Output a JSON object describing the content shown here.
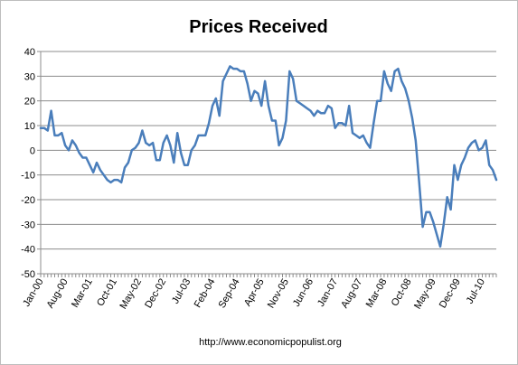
{
  "chart_data": {
    "type": "line",
    "title": "Prices Received",
    "xlabel": "",
    "ylabel": "",
    "ylim": [
      -50,
      40
    ],
    "yticks": [
      "40",
      "30",
      "20",
      "10",
      "0",
      "-10",
      "-20",
      "-30",
      "-40",
      "-50"
    ],
    "ytick_values": [
      40,
      30,
      20,
      10,
      0,
      -10,
      -20,
      -30,
      -40,
      -50
    ],
    "grid": true,
    "legend": "none",
    "line_color": "#4a7ebb",
    "start_date": "2000-01",
    "xtick_labels": [
      "Jan-00",
      "Aug-00",
      "Mar-01",
      "Oct-01",
      "May-02",
      "Dec-02",
      "Jul-03",
      "Feb-04",
      "Sep-04",
      "Apr-05",
      "Nov-05",
      "Jun-06",
      "Jan-07",
      "Aug-07",
      "Mar-08",
      "Oct-08",
      "May-09",
      "Dec-09",
      "Jul-10"
    ],
    "series": [
      {
        "values": [
          9,
          9,
          8,
          16,
          6,
          6,
          7,
          2,
          0,
          4,
          2,
          -1,
          -3,
          -3,
          -6,
          -9,
          -5,
          -8,
          -10,
          -12,
          -13,
          -12,
          -12,
          -13,
          -7,
          -5,
          0,
          1,
          3,
          8,
          3,
          2,
          3,
          -4,
          -4,
          3,
          6,
          2,
          -5,
          7,
          -1,
          -6,
          -6,
          0,
          2,
          6,
          6,
          6,
          11,
          18,
          21,
          14,
          28,
          31,
          34,
          33,
          33,
          32,
          32,
          27,
          20,
          24,
          23,
          18,
          28,
          18,
          12,
          12,
          2,
          5,
          12,
          32,
          29,
          20,
          19,
          18,
          17,
          16,
          14,
          16,
          15,
          15,
          18,
          17,
          9,
          11,
          11,
          10,
          18,
          7,
          6,
          5,
          6,
          3,
          1,
          11,
          20,
          20,
          32,
          27,
          24,
          32,
          33,
          28,
          25,
          20,
          13,
          4,
          -13,
          -31,
          -25,
          -25,
          -29,
          -34,
          -39,
          -30,
          -19,
          -24,
          -6,
          -12,
          -6,
          -3,
          1,
          3,
          4,
          0,
          1,
          4,
          -6,
          -8,
          -12
        ]
      }
    ]
  },
  "source_text": "http://www.economicpopulist.org"
}
